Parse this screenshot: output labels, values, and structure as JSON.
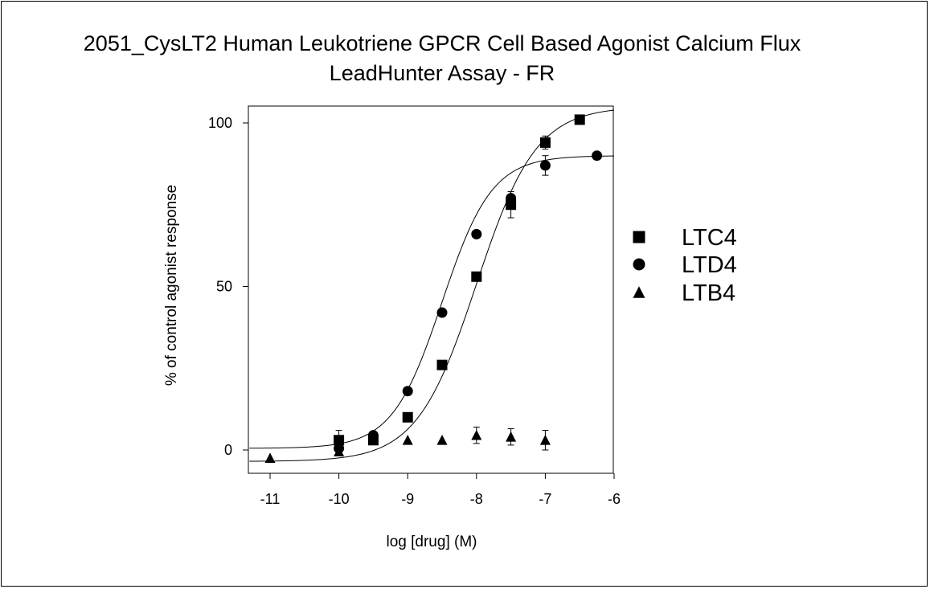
{
  "chart_data": {
    "type": "scatter",
    "title_line1": "2051_CysLT2 Human Leukotriene GPCR Cell Based Agonist Calcium Flux",
    "title_line2": "LeadHunter Assay - FR",
    "xlabel": "log [drug] (M)",
    "ylabel": "% of control agonist response",
    "xlim": [
      -11.3,
      -6
    ],
    "ylim": [
      -5,
      105
    ],
    "xticks": [
      -11,
      -10,
      -9,
      -8,
      -7,
      -6
    ],
    "xtick_labels": [
      "-11",
      "-10",
      "-9",
      "-8",
      "-7",
      "-6"
    ],
    "yticks": [
      0,
      50,
      100
    ],
    "ytick_labels": [
      "0",
      "50",
      "100"
    ],
    "legend_position": "right",
    "series": [
      {
        "name": "LTC4",
        "marker": "square",
        "x": [
          -10,
          -9.5,
          -9,
          -8.5,
          -8,
          -7.5,
          -7,
          -6.5
        ],
        "y": [
          3,
          3,
          10,
          26,
          53,
          75,
          94,
          101
        ],
        "err": [
          3,
          0,
          0,
          0,
          1,
          4,
          2,
          0
        ],
        "fit": {
          "bottom": -3.5,
          "top": 105,
          "logEC50": -8.0,
          "hill": 1.0
        }
      },
      {
        "name": "LTD4",
        "marker": "circle",
        "x": [
          -10,
          -9.5,
          -9,
          -8.5,
          -8,
          -7.5,
          -7,
          -6.25
        ],
        "y": [
          0.5,
          4.5,
          18,
          42,
          66,
          77,
          87,
          90
        ],
        "err": [
          0,
          0,
          0,
          0,
          0,
          0,
          3,
          0
        ],
        "fit": {
          "bottom": 0.5,
          "top": 90,
          "logEC50": -8.5,
          "hill": 1.2
        }
      },
      {
        "name": "LTB4",
        "marker": "triangle",
        "x": [
          -11,
          -10,
          -9,
          -8.5,
          -8,
          -7.5,
          -7
        ],
        "y": [
          -2.5,
          -0.5,
          3,
          3,
          4.5,
          4,
          3
        ],
        "err": [
          0,
          0,
          0,
          0,
          2.5,
          2.5,
          3
        ]
      }
    ]
  }
}
